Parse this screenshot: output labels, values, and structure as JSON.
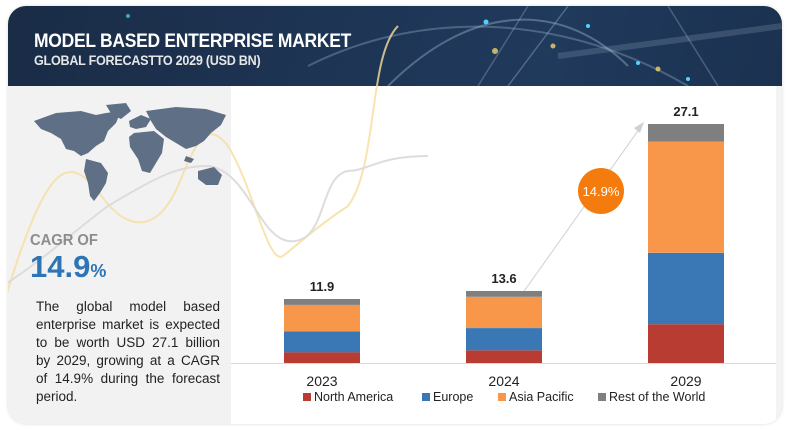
{
  "header": {
    "title": "MODEL BASED ENTERPRISE MARKET",
    "subtitle": "GLOBAL FORECASTTO 2029 (USD BN)"
  },
  "left_panel": {
    "map_icon": "world-map-icon",
    "cagr_label": "CAGR OF",
    "cagr_value": "14.9",
    "cagr_unit": "%",
    "description": "The global model based enterprise market is expected to be worth USD 27.1 billion by 2029, growing at a CAGR of 14.9% during the forecast period."
  },
  "cagr_bubble": "14.9%",
  "chart_data": {
    "type": "bar",
    "stacked": true,
    "title": "MODEL BASED ENTERPRISE MARKET",
    "subtitle": "GLOBAL FORECASTTO 2029 (USD BN)",
    "xlabel": "",
    "ylabel": "",
    "categories": [
      "2023",
      "2024",
      "2029"
    ],
    "totals": [
      "11.9",
      "13.6",
      "27.1"
    ],
    "series": [
      {
        "name": "North America",
        "color": "#b83c32",
        "values": [
          2.0,
          2.4,
          4.4
        ]
      },
      {
        "name": "Europe",
        "color": "#3a78b5",
        "values": [
          3.9,
          4.2,
          8.1
        ]
      },
      {
        "name": "Asia Pacific",
        "color": "#f8964a",
        "values": [
          4.9,
          5.9,
          12.6
        ]
      },
      {
        "name": "Rest of the World",
        "color": "#7f7f7f",
        "values": [
          1.1,
          1.1,
          2.0
        ]
      }
    ],
    "annotation": "14.9%",
    "grid": false,
    "legend": "bottom"
  }
}
